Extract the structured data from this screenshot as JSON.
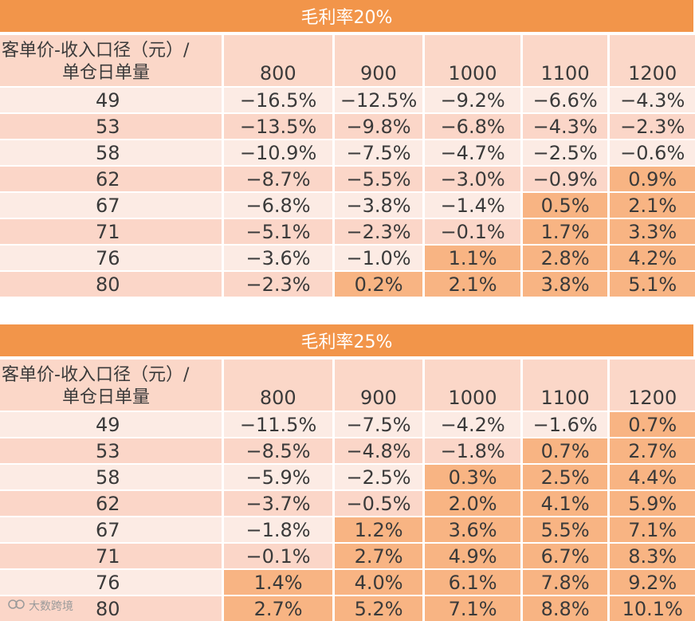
{
  "tables": [
    {
      "title": "毛利率20%",
      "row_header_line1": "客单价-收入口径（元）/",
      "row_header_line2": "单仓日单量",
      "columns": [
        "800",
        "900",
        "1000",
        "1100",
        "1200"
      ],
      "rows": [
        {
          "label": "49",
          "cells": [
            "−16.5%",
            "−12.5%",
            "−9.2%",
            "−6.6%",
            "−4.3%"
          ]
        },
        {
          "label": "53",
          "cells": [
            "−13.5%",
            "−9.8%",
            "−6.8%",
            "−4.3%",
            "−2.3%"
          ]
        },
        {
          "label": "58",
          "cells": [
            "−10.9%",
            "−7.5%",
            "−4.7%",
            "−2.5%",
            "−0.6%"
          ]
        },
        {
          "label": "62",
          "cells": [
            "−8.7%",
            "−5.5%",
            "−3.0%",
            "−0.9%",
            "0.9%"
          ]
        },
        {
          "label": "67",
          "cells": [
            "−6.8%",
            "−3.8%",
            "−1.4%",
            "0.5%",
            "2.1%"
          ]
        },
        {
          "label": "71",
          "cells": [
            "−5.1%",
            "−2.3%",
            "−0.1%",
            "1.7%",
            "3.3%"
          ]
        },
        {
          "label": "76",
          "cells": [
            "−3.6%",
            "−1.0%",
            "1.1%",
            "2.8%",
            "4.2%"
          ]
        },
        {
          "label": "80",
          "cells": [
            "−2.3%",
            "0.2%",
            "2.1%",
            "3.8%",
            "5.1%"
          ]
        }
      ]
    },
    {
      "title": "毛利率25%",
      "row_header_line1": "客单价-收入口径（元）/",
      "row_header_line2": "单仓日单量",
      "columns": [
        "800",
        "900",
        "1000",
        "1100",
        "1200"
      ],
      "rows": [
        {
          "label": "49",
          "cells": [
            "−11.5%",
            "−7.5%",
            "−4.2%",
            "−1.6%",
            "0.7%"
          ]
        },
        {
          "label": "53",
          "cells": [
            "−8.5%",
            "−4.8%",
            "−1.8%",
            "0.7%",
            "2.7%"
          ]
        },
        {
          "label": "58",
          "cells": [
            "−5.9%",
            "−2.5%",
            "0.3%",
            "2.5%",
            "4.4%"
          ]
        },
        {
          "label": "62",
          "cells": [
            "−3.7%",
            "−0.5%",
            "2.0%",
            "4.1%",
            "5.9%"
          ]
        },
        {
          "label": "67",
          "cells": [
            "−1.8%",
            "1.2%",
            "3.6%",
            "5.5%",
            "7.1%"
          ]
        },
        {
          "label": "71",
          "cells": [
            "−0.1%",
            "2.7%",
            "4.9%",
            "6.7%",
            "8.3%"
          ]
        },
        {
          "label": "76",
          "cells": [
            "1.4%",
            "4.0%",
            "6.1%",
            "7.8%",
            "9.2%"
          ]
        },
        {
          "label": "80",
          "cells": [
            "2.7%",
            "5.2%",
            "7.1%",
            "8.8%",
            "10.1%"
          ]
        }
      ]
    }
  ],
  "watermark": "大数跨境",
  "colors": {
    "title_bg": "#f2954a",
    "header_bg": "#fbd7c8",
    "row_light": "#fcebe4",
    "row_dark": "#fbd6c8",
    "positive_cell": "#f8b483"
  }
}
